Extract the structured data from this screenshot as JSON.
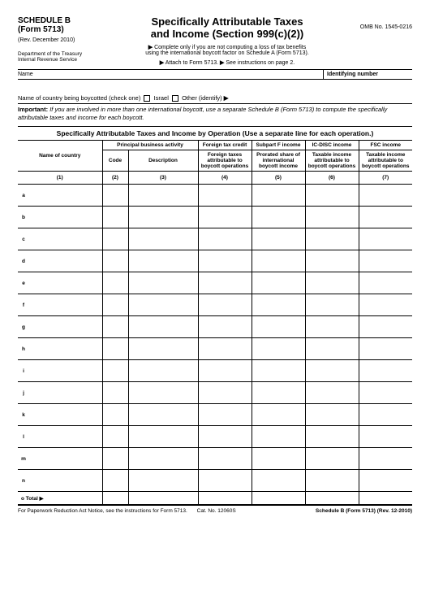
{
  "header": {
    "schedule": "SCHEDULE B",
    "form": "(Form 5713)",
    "rev": "(Rev. December 2010)",
    "dept1": "Department of the Treasury",
    "dept2": "Internal Revenue Service",
    "title1": "Specifically Attributable Taxes",
    "title2": "and Income (Section 999(c)(2))",
    "sub1": "Complete only if you are not computing a loss of tax benefits",
    "sub2": "using the international boycott factor on Schedule A (Form 5713).",
    "sub3": "Attach to Form 5713.",
    "sub4": "See instructions on page 2.",
    "omb": "OMB No. 1545-0216"
  },
  "nameRow": {
    "nameLabel": "Name",
    "idLabel": "Identifying number"
  },
  "boycott": {
    "text1": "Name of country being boycotted (check one)",
    "opt1": "Israel",
    "opt2": "Other (identify)"
  },
  "important": {
    "bold": "Important:",
    "text": "If you are involved in more than one international boycott, use a separate Schedule B (Form 5713) to compute the specifically attributable taxes and income for each boycott."
  },
  "sectionHead": "Specifically Attributable Taxes and Income by Operation (Use a separate line for each operation.)",
  "table": {
    "spanner1": "Principal business activity",
    "spanner2": "Foreign tax credit",
    "spanner3": "Subpart F income",
    "spanner4": "IC-DISC income",
    "spanner5": "FSC income",
    "h1": "Name of country",
    "h2": "Code",
    "h3": "Description",
    "h4": "Foreign taxes attributable to boycott operations",
    "h5": "Prorated share of international boycott income",
    "h6": "Taxable income attributable to boycott operations",
    "h7": "Taxable income attributable to boycott operations",
    "c1": "(1)",
    "c2": "(2)",
    "c3": "(3)",
    "c4": "(4)",
    "c5": "(5)",
    "c6": "(6)",
    "c7": "(7)",
    "rows": [
      "a",
      "b",
      "c",
      "d",
      "e",
      "f",
      "g",
      "h",
      "i",
      "j",
      "k",
      "l",
      "m",
      "n"
    ],
    "totalLabel": "o  Total"
  },
  "footer": {
    "notice": "For Paperwork Reduction Act Notice, see the instructions for Form 5713.",
    "cat": "Cat. No. 12060S",
    "formrev": "Schedule B (Form 5713) (Rev. 12-2010)"
  }
}
